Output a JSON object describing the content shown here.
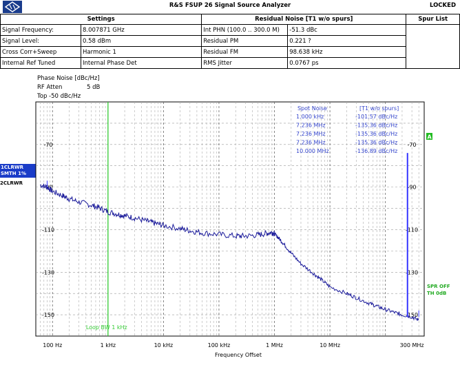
{
  "header": {
    "title": "R&S FSUP 26 Signal Source Analyzer",
    "status": "LOCKED"
  },
  "summary": {
    "col_settings": "Settings",
    "col_residual": "Residual Noise [T1 w/o spurs]",
    "col_spur": "Spur List",
    "rows": [
      {
        "label": "Signal Frequency:",
        "value": "8.007871 GHz",
        "rlabel": "Int PHN (100.0 .. 300.0 M)",
        "rvalue": "-51.3 dBc"
      },
      {
        "label": "Signal Level:",
        "value": "0.58 dBm",
        "rlabel": "Residual PM",
        "rvalue": "0.221 ?"
      },
      {
        "label": "Cross Corr+Sweep",
        "value": "Harmonic 1",
        "rlabel": "Residual FM",
        "rvalue": "98.638 kHz"
      },
      {
        "label": "Internal Ref Tuned",
        "value": "Internal Phase Det",
        "rlabel": "RMS Jitter",
        "rvalue": "0.0767 ps"
      }
    ]
  },
  "plot_info": {
    "line1": "Phase Noise [dBc/Hz]",
    "line2_label": "RF Atten",
    "line2_value": "5 dB",
    "line3": "Top -50 dBc/Hz"
  },
  "traces": {
    "t1_line1": "1CLRWR",
    "t1_line2": "SMTH 1%",
    "t2": "2CLRWR"
  },
  "markers": {
    "a_label": "A",
    "spr_line1": "SPR OFF",
    "spr_line2": "TH 0dB",
    "loop_bw": "Loop BW 1 kHz"
  },
  "spot_noise": {
    "header_left": "Spot Noise",
    "header_right": "[T1 w/o spurs]",
    "rows": [
      {
        "freq": "1.000 kHz",
        "value": "-101.57 dBc/Hz"
      },
      {
        "freq": "7.236 MHz",
        "value": "-135.36 dBc/Hz"
      },
      {
        "freq": "7.236 MHz",
        "value": "-135.36 dBc/Hz"
      },
      {
        "freq": "7.236 MHz",
        "value": "-135.36 dBc/Hz"
      },
      {
        "freq": "10.000 MHz",
        "value": "-136.89 dBc/Hz"
      }
    ]
  },
  "chart_data": {
    "type": "line",
    "xscale": "log",
    "xlabel": "Frequency Offset",
    "ylabel": "",
    "xlim": [
      50,
      500000000
    ],
    "ylim": [
      -160,
      -50
    ],
    "x_ticks": [
      100,
      1000,
      10000,
      100000,
      1000000,
      10000000,
      300000000
    ],
    "x_tick_labels": [
      "100 Hz",
      "1 kHz",
      "10 kHz",
      "100 kHz",
      "1 MHz",
      "10 MHz",
      "300 MHz"
    ],
    "y_ticks": [
      -70,
      -90,
      -110,
      -130,
      -150
    ],
    "y_tick_labels": [
      "-70",
      "-90",
      "-110",
      "-130",
      "-150"
    ],
    "grid": true,
    "loop_bw_hz": 1000,
    "colors": {
      "trace": "#1a1a9a",
      "spur": "#3333ff",
      "loop": "#33cc33",
      "text_blue": "#3344cc"
    },
    "series": [
      {
        "name": "",
        "x": [
          60,
          80,
          100,
          150,
          200,
          300,
          500,
          700,
          1000,
          1500,
          2000,
          3000,
          5000,
          7000,
          10000,
          20000,
          30000,
          50000,
          100000,
          200000,
          300000,
          500000,
          700000,
          900000,
          1000000,
          1200000,
          1500000,
          2000000,
          3000000,
          5000000,
          7000000,
          10000000,
          20000000,
          30000000,
          50000000,
          70000000,
          100000000,
          150000000,
          200000000,
          300000000,
          400000000
        ],
        "y": [
          -89,
          -90,
          -92,
          -94,
          -95.5,
          -97,
          -98.5,
          -99.8,
          -101.6,
          -102.7,
          -103.5,
          -104.5,
          -106,
          -107,
          -108,
          -109.5,
          -110.5,
          -111.5,
          -112.3,
          -113,
          -113,
          -112.5,
          -111.8,
          -111.3,
          -112,
          -114,
          -117,
          -121,
          -126,
          -130.5,
          -133.5,
          -136.9,
          -140,
          -142,
          -144.5,
          -146,
          -147.5,
          -149,
          -150,
          -151,
          -152.5
        ]
      }
    ],
    "spurs": [
      {
        "x": 250000000,
        "y": -74
      },
      {
        "x": 80,
        "y": -87
      },
      {
        "x": 400000000,
        "y": -148
      }
    ]
  }
}
